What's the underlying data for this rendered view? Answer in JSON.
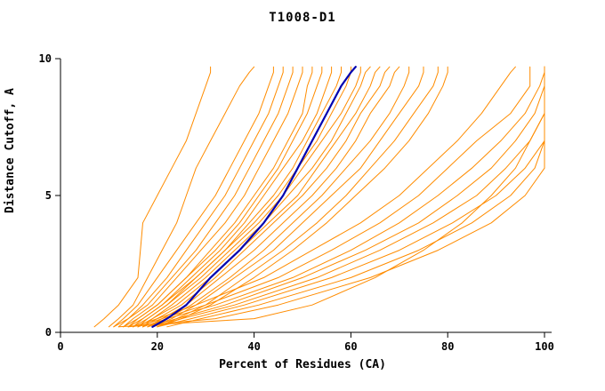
{
  "chart_data": {
    "type": "line",
    "title": "T1008-D1",
    "xlabel": "Percent of Residues (CA)",
    "ylabel": "Distance Cutoff, A",
    "xlim": [
      0,
      100
    ],
    "ylim": [
      0,
      10
    ],
    "x_ticks": [
      0,
      20,
      40,
      60,
      80,
      100
    ],
    "y_ticks": [
      0,
      5,
      10
    ],
    "grid": false,
    "legend": "none",
    "colors": {
      "model": "#ff8c00",
      "highlight": "#0000b0",
      "axis": "#000000"
    },
    "cutoff_grid": [
      0.2,
      0.5,
      1,
      2,
      3,
      4,
      5,
      6,
      7,
      8,
      9,
      9.5,
      9.7
    ],
    "series": [
      {
        "color": "#ff8c00",
        "width": 1,
        "percent": [
          7,
          9,
          12,
          16,
          16.5,
          17,
          20,
          23,
          26,
          28,
          30,
          31,
          31
        ]
      },
      {
        "color": "#ff8c00",
        "width": 1,
        "percent": [
          10,
          12,
          15,
          18,
          21,
          24,
          26,
          28,
          31,
          34,
          37,
          39,
          40
        ]
      },
      {
        "color": "#ff8c00",
        "width": 1,
        "percent": [
          11,
          13,
          16,
          20,
          24,
          28,
          32,
          35,
          38,
          41,
          43,
          44,
          44
        ]
      },
      {
        "color": "#ff8c00",
        "width": 1,
        "percent": [
          12,
          14,
          17,
          22,
          26,
          30,
          34,
          37,
          40,
          43,
          45,
          46,
          46
        ]
      },
      {
        "color": "#ff8c00",
        "width": 1,
        "percent": [
          11,
          14,
          18,
          23,
          28,
          32,
          36,
          39,
          42,
          45,
          47,
          48,
          48
        ]
      },
      {
        "color": "#ff8c00",
        "width": 1,
        "percent": [
          13,
          15,
          19,
          24,
          29,
          34,
          38,
          41,
          44,
          47,
          49,
          50,
          50
        ]
      },
      {
        "color": "#ff8c00",
        "width": 1,
        "percent": [
          13,
          16,
          20,
          26,
          31,
          36,
          40,
          44,
          47,
          50,
          51,
          52,
          52
        ]
      },
      {
        "color": "#ff8c00",
        "width": 1,
        "percent": [
          14,
          16,
          20,
          26,
          32,
          37,
          41,
          45,
          48,
          51,
          53,
          54,
          54
        ]
      },
      {
        "color": "#ff8c00",
        "width": 1,
        "percent": [
          14,
          17,
          21,
          27,
          33,
          38,
          42,
          46,
          50,
          53,
          55,
          56,
          56
        ]
      },
      {
        "color": "#ff8c00",
        "width": 1,
        "percent": [
          15,
          17,
          21,
          28,
          34,
          39,
          44,
          48,
          51,
          54,
          57,
          58,
          58
        ]
      },
      {
        "color": "#ff8c00",
        "width": 1,
        "percent": [
          15,
          18,
          22,
          28,
          34,
          40,
          45,
          49,
          53,
          56,
          59,
          60,
          60
        ]
      },
      {
        "color": "#ff8c00",
        "width": 1,
        "percent": [
          16,
          18,
          22,
          29,
          35,
          41,
          46,
          50,
          54,
          58,
          61,
          62,
          62
        ]
      },
      {
        "color": "#ff8c00",
        "width": 1,
        "percent": [
          16,
          19,
          23,
          30,
          36,
          42,
          47,
          52,
          56,
          59,
          62,
          63,
          64
        ]
      },
      {
        "color": "#ff8c00",
        "width": 1,
        "percent": [
          17,
          19,
          24,
          31,
          37,
          43,
          49,
          53,
          57,
          61,
          64,
          65,
          66
        ]
      },
      {
        "color": "#ff8c00",
        "width": 1,
        "percent": [
          17,
          20,
          25,
          32,
          38,
          44,
          50,
          55,
          59,
          62,
          66,
          67,
          68
        ]
      },
      {
        "color": "#ff8c00",
        "width": 1,
        "percent": [
          18,
          21,
          26,
          33,
          40,
          46,
          52,
          57,
          61,
          64,
          68,
          69,
          70
        ]
      },
      {
        "color": "#ff8c00",
        "width": 1,
        "percent": [
          18,
          22,
          27,
          35,
          42,
          48,
          54,
          59,
          64,
          68,
          71,
          72,
          72
        ]
      },
      {
        "color": "#ff8c00",
        "width": 1,
        "percent": [
          19,
          23,
          28,
          36,
          44,
          50,
          56,
          62,
          66,
          70,
          74,
          75,
          75
        ]
      },
      {
        "color": "#ff8c00",
        "width": 1,
        "percent": [
          20,
          24,
          30,
          38,
          46,
          53,
          59,
          64,
          69,
          73,
          77,
          78,
          78
        ]
      },
      {
        "color": "#ff8c00",
        "width": 1,
        "percent": [
          20,
          25,
          31,
          40,
          48,
          55,
          61,
          67,
          72,
          76,
          79,
          80,
          80
        ]
      },
      {
        "color": "#ff8c00",
        "width": 1,
        "percent": [
          12,
          40,
          52,
          65,
          75,
          83,
          89,
          94,
          97,
          100,
          100,
          100,
          100
        ]
      },
      {
        "color": "#ff8c00",
        "width": 1,
        "percent": [
          15,
          20,
          28,
          42,
          52,
          62,
          70,
          76,
          82,
          87,
          91,
          93,
          94
        ]
      },
      {
        "color": "#ff8c00",
        "width": 1,
        "percent": [
          16,
          21,
          30,
          45,
          56,
          66,
          74,
          80,
          86,
          93,
          97,
          97,
          97
        ]
      },
      {
        "color": "#ff8c00",
        "width": 1,
        "percent": [
          17,
          22,
          32,
          48,
          60,
          70,
          78,
          85,
          91,
          96,
          99,
          100,
          100
        ]
      },
      {
        "color": "#ff8c00",
        "width": 1,
        "percent": [
          18,
          24,
          34,
          50,
          63,
          74,
          82,
          89,
          94,
          98,
          100,
          100,
          100
        ]
      },
      {
        "color": "#ff8c00",
        "width": 1,
        "percent": [
          19,
          25,
          36,
          53,
          66,
          77,
          86,
          92,
          97,
          100,
          100,
          100,
          100
        ]
      },
      {
        "color": "#ff8c00",
        "width": 1,
        "percent": [
          20,
          27,
          38,
          56,
          70,
          81,
          90,
          96,
          100,
          100,
          100,
          100,
          100
        ]
      },
      {
        "color": "#ff8c00",
        "width": 1,
        "percent": [
          22,
          29,
          41,
          60,
          74,
          85,
          93,
          98,
          100,
          100,
          100,
          100,
          100
        ]
      },
      {
        "color": "#ff8c00",
        "width": 1,
        "percent": [
          14,
          32,
          45,
          64,
          78,
          89,
          96,
          100,
          100,
          100,
          100,
          100,
          100
        ]
      },
      {
        "color": "#0000b0",
        "width": 2.2,
        "emphasis": true,
        "percent": [
          19,
          22,
          26,
          31,
          37,
          42,
          46,
          49,
          52,
          55,
          58,
          60,
          61
        ]
      }
    ]
  }
}
